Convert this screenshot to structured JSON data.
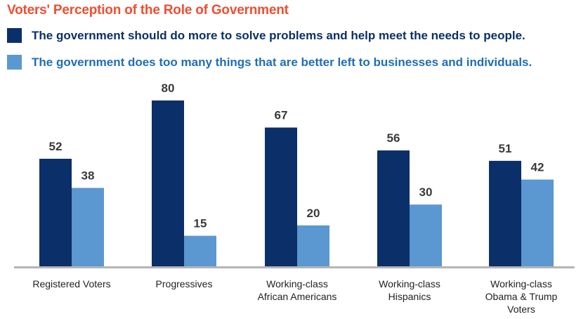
{
  "chart_data": {
    "type": "bar",
    "title": "Voters' Perception of the Role of Government",
    "categories": [
      [
        "Registered Voters"
      ],
      [
        "Progressives"
      ],
      [
        "Working-class",
        "African Americans"
      ],
      [
        "Working-class",
        "Hispanics"
      ],
      [
        "Working-class",
        "Obama & Trump",
        "Voters"
      ]
    ],
    "series": [
      {
        "name": "The government should do more to solve problems and help meet the needs to people.",
        "color": "#0b2f68",
        "values": [
          52,
          80,
          67,
          56,
          51
        ]
      },
      {
        "name": "The government does too many things that are better left to businesses and individuals.",
        "color": "#5b97d1",
        "values": [
          38,
          15,
          20,
          30,
          42
        ]
      }
    ],
    "legend_text_colors": [
      "#0b2f68",
      "#1f6eb5"
    ],
    "ylim": [
      0,
      80
    ],
    "axis_color": "#b5b5b5",
    "legend_position": "top-left",
    "grid": false
  }
}
